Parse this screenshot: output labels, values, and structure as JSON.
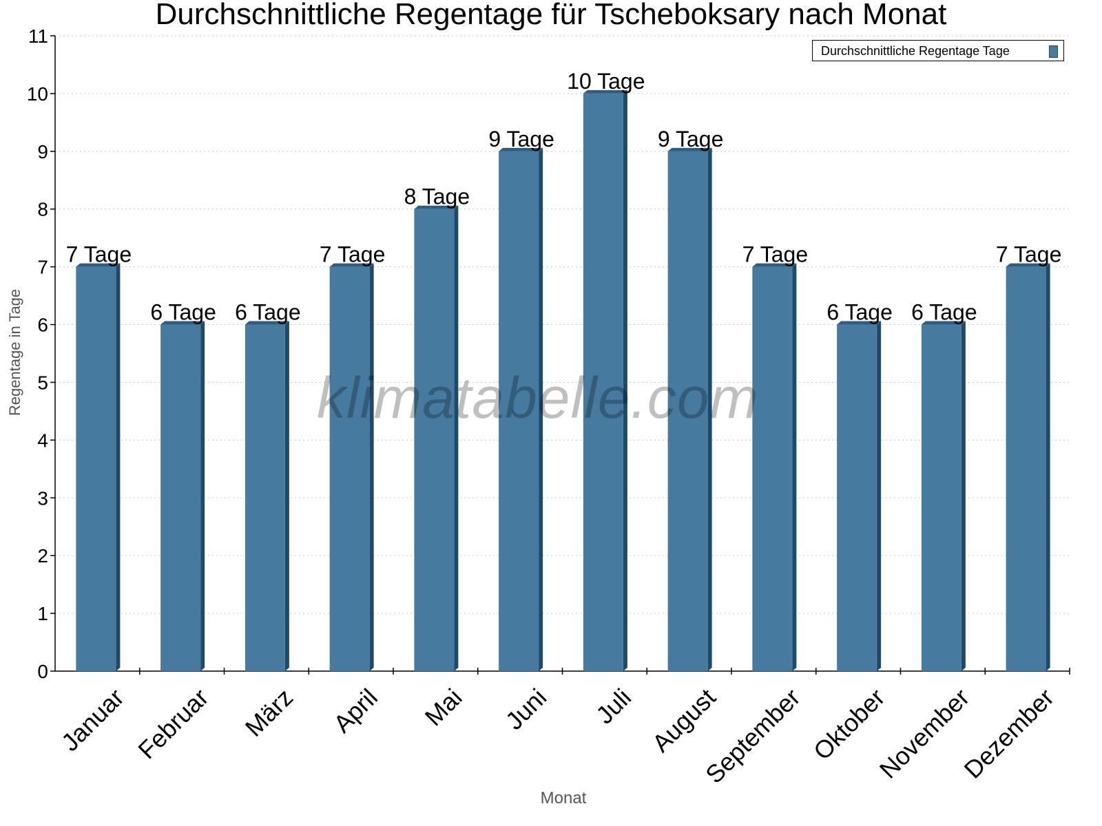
{
  "chart_data": {
    "type": "bar",
    "title": "Durchschnittliche Regentage für Tscheboksary nach Monat",
    "xlabel": "Monat",
    "ylabel": "Regentage in Tage",
    "ylim": [
      0,
      11
    ],
    "yticks": [
      0,
      1,
      2,
      3,
      4,
      5,
      6,
      7,
      8,
      9,
      10,
      11
    ],
    "grid": true,
    "legend_position": "top-right",
    "categories": [
      "Januar",
      "Februar",
      "März",
      "April",
      "Mai",
      "Juni",
      "Juli",
      "August",
      "September",
      "Oktober",
      "November",
      "Dezember"
    ],
    "series": [
      {
        "name": "Durchschnittliche Regentage Tage",
        "values": [
          7,
          6,
          6,
          7,
          8,
          9,
          10,
          9,
          7,
          6,
          6,
          7
        ],
        "color": "#467b9f",
        "data_label_suffix": " Tage"
      }
    ],
    "watermark": "klimatabelle.com"
  },
  "colors": {
    "bar_front": "#467b9f",
    "bar_side": "#1d4a6b",
    "bar_top": "#2b5e82",
    "grid": "#c8c8c8",
    "axis": "#000000"
  }
}
